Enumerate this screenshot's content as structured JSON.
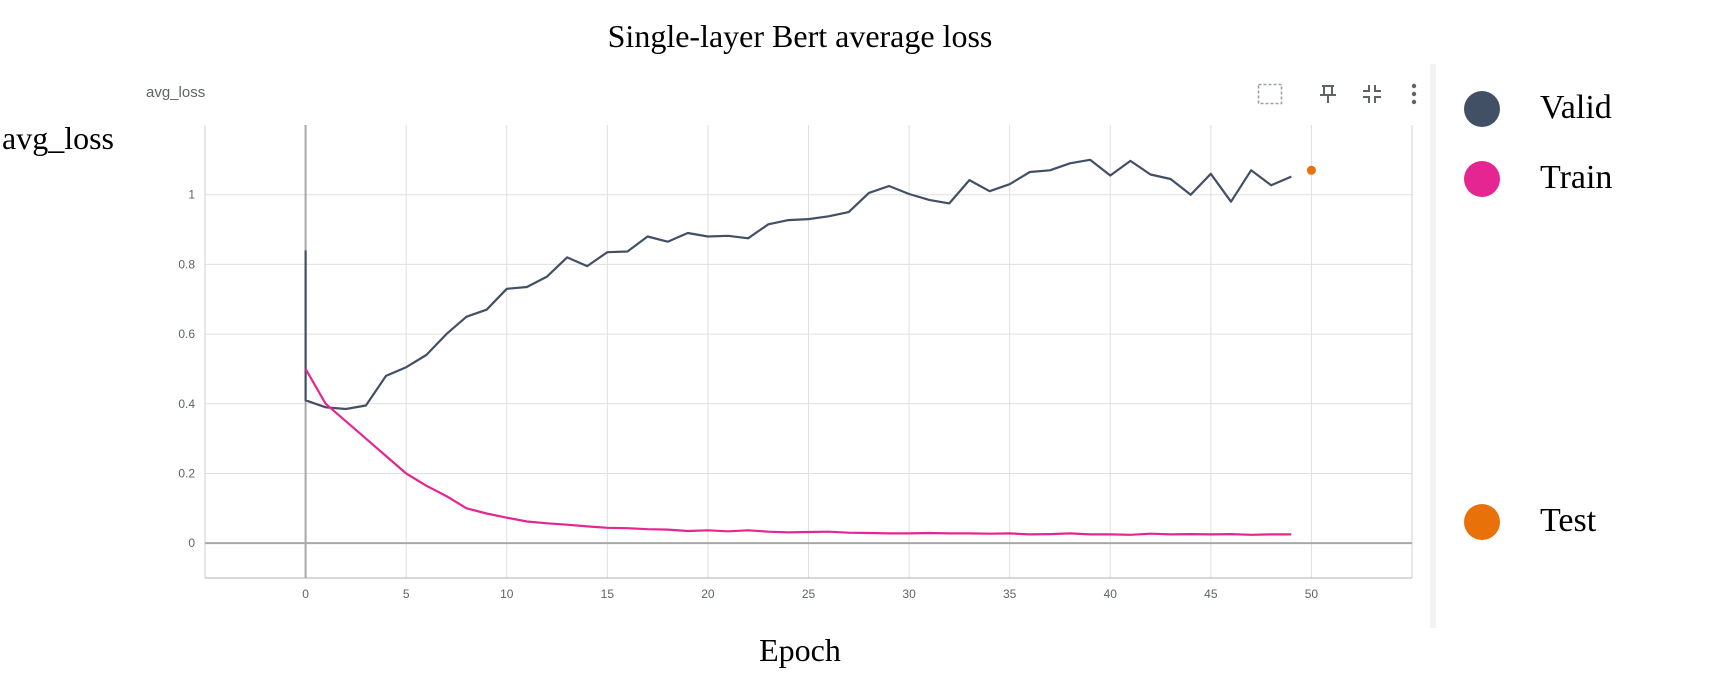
{
  "title": "Single-layer Bert average loss",
  "card_title": "avg_loss",
  "toolbar": {
    "icons": [
      "fit-domain-icon",
      "pin-icon",
      "collapse-icon",
      "more-vert-icon"
    ]
  },
  "chart_data": {
    "type": "line",
    "title": "Single-layer Bert average loss",
    "xlabel": "Epoch",
    "ylabel": "avg_loss",
    "xlim": [
      -5,
      55
    ],
    "ylim": [
      -0.1,
      1.2
    ],
    "xticks": [
      0,
      5,
      10,
      15,
      20,
      25,
      30,
      35,
      40,
      45,
      50
    ],
    "yticks": [
      0,
      0.2,
      0.4,
      0.6,
      0.8,
      1
    ],
    "ytick_labels": [
      "0",
      "0.2",
      "0.4",
      "0.6",
      "0.8",
      "1"
    ],
    "grid": true,
    "legend_position": "right",
    "series": [
      {
        "name": "Valid",
        "color": "#425066",
        "x": [
          0,
          0,
          1,
          2,
          3,
          4,
          5,
          6,
          7,
          8,
          9,
          10,
          11,
          12,
          13,
          14,
          15,
          16,
          17,
          18,
          19,
          20,
          21,
          22,
          23,
          24,
          25,
          26,
          27,
          28,
          29,
          30,
          31,
          32,
          33,
          34,
          35,
          36,
          37,
          38,
          39,
          40,
          41,
          42,
          43,
          44,
          45,
          46,
          47,
          48,
          49
        ],
        "y": [
          0.84,
          0.41,
          0.39,
          0.385,
          0.395,
          0.48,
          0.505,
          0.54,
          0.6,
          0.65,
          0.67,
          0.73,
          0.735,
          0.765,
          0.82,
          0.795,
          0.835,
          0.837,
          0.88,
          0.865,
          0.89,
          0.88,
          0.882,
          0.875,
          0.915,
          0.927,
          0.93,
          0.938,
          0.95,
          1.005,
          1.025,
          1.002,
          0.985,
          0.975,
          1.042,
          1.01,
          1.03,
          1.065,
          1.07,
          1.09,
          1.1,
          1.055,
          1.097,
          1.058,
          1.045,
          1.0,
          1.06,
          0.98,
          1.07,
          1.027,
          1.052
        ]
      },
      {
        "name": "Train",
        "color": "#e52592",
        "x": [
          0,
          1,
          2,
          3,
          4,
          5,
          6,
          7,
          8,
          9,
          10,
          11,
          12,
          13,
          14,
          15,
          16,
          17,
          18,
          19,
          20,
          21,
          22,
          23,
          24,
          25,
          26,
          27,
          28,
          29,
          30,
          31,
          32,
          33,
          34,
          35,
          36,
          37,
          38,
          39,
          40,
          41,
          42,
          43,
          44,
          45,
          46,
          47,
          48,
          49
        ],
        "y": [
          0.5,
          0.4,
          0.35,
          0.3,
          0.25,
          0.2,
          0.165,
          0.135,
          0.1,
          0.085,
          0.073,
          0.062,
          0.057,
          0.053,
          0.048,
          0.044,
          0.043,
          0.04,
          0.039,
          0.035,
          0.037,
          0.034,
          0.037,
          0.033,
          0.031,
          0.032,
          0.033,
          0.03,
          0.029,
          0.028,
          0.028,
          0.029,
          0.028,
          0.028,
          0.027,
          0.028,
          0.025,
          0.026,
          0.028,
          0.025,
          0.025,
          0.024,
          0.027,
          0.025,
          0.026,
          0.025,
          0.026,
          0.024,
          0.025,
          0.025
        ]
      },
      {
        "name": "Test",
        "color": "#e8710a",
        "x": [
          50
        ],
        "y": [
          1.07
        ],
        "marker_only": true
      }
    ]
  },
  "legend": [
    {
      "label": "Valid",
      "color": "#425066"
    },
    {
      "label": "Train",
      "color": "#e52592"
    },
    {
      "label": "Test",
      "color": "#e8710a"
    }
  ]
}
